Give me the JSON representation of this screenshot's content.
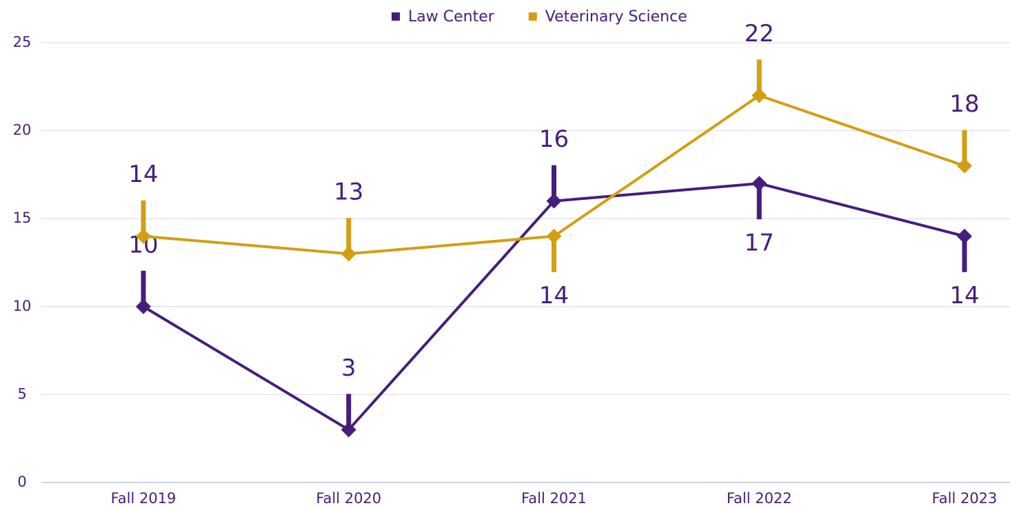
{
  "chart_data": {
    "type": "line",
    "categories": [
      "Fall 2019",
      "Fall 2020",
      "Fall 2021",
      "Fall 2022",
      "Fall 2023"
    ],
    "series": [
      {
        "name": "Law Center",
        "color": "#461d7c",
        "values": [
          10,
          3,
          16,
          17,
          14
        ]
      },
      {
        "name": "Veterinary Science",
        "color": "#d29f13",
        "values": [
          14,
          13,
          14,
          22,
          18
        ]
      }
    ],
    "ylim": [
      0,
      25
    ],
    "yticks": [
      0,
      5,
      10,
      15,
      20,
      25
    ],
    "grid": true,
    "legend": "top"
  }
}
